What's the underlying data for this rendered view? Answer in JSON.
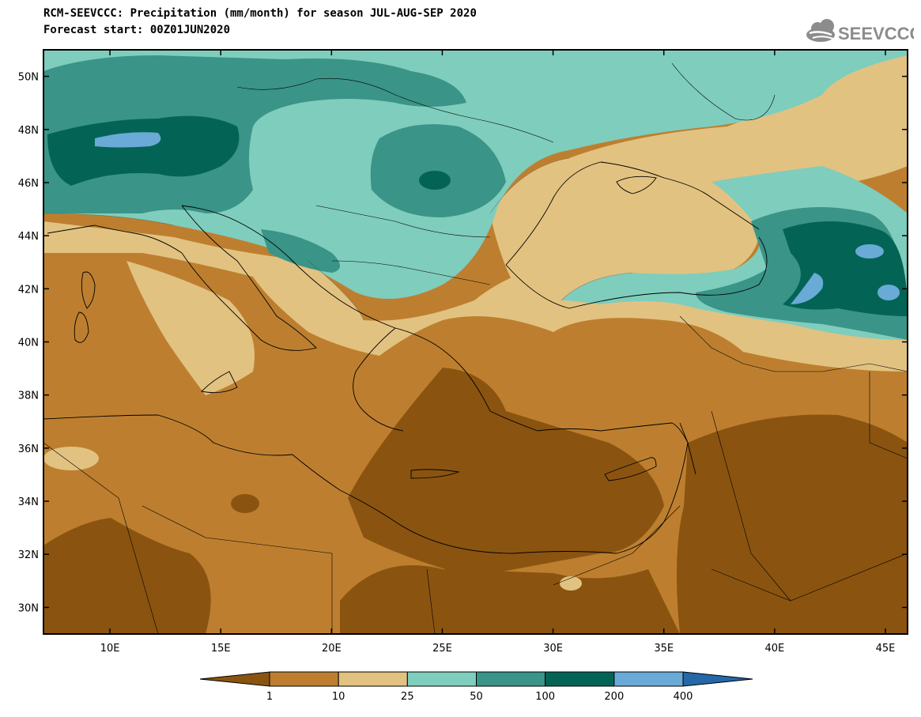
{
  "header": {
    "title": "RCM-SEEVCCC: Precipitation (mm/month) for season JUL-AUG-SEP 2020",
    "subtitle": "Forecast start: 00Z01JUN2020",
    "logo_text": "SEEVCCC"
  },
  "map": {
    "lon_range": [
      7,
      46
    ],
    "lat_range": [
      29,
      51
    ],
    "lat_ticks": [
      {
        "value": 30,
        "label": "30N"
      },
      {
        "value": 32,
        "label": "32N"
      },
      {
        "value": 34,
        "label": "34N"
      },
      {
        "value": 36,
        "label": "36N"
      },
      {
        "value": 38,
        "label": "38N"
      },
      {
        "value": 40,
        "label": "40N"
      },
      {
        "value": 42,
        "label": "42N"
      },
      {
        "value": 44,
        "label": "44N"
      },
      {
        "value": 46,
        "label": "46N"
      },
      {
        "value": 48,
        "label": "48N"
      },
      {
        "value": 50,
        "label": "50N"
      }
    ],
    "lon_ticks": [
      {
        "value": 10,
        "label": "10E"
      },
      {
        "value": 15,
        "label": "15E"
      },
      {
        "value": 20,
        "label": "20E"
      },
      {
        "value": 25,
        "label": "25E"
      },
      {
        "value": 30,
        "label": "30E"
      },
      {
        "value": 35,
        "label": "35E"
      },
      {
        "value": 40,
        "label": "40E"
      },
      {
        "value": 45,
        "label": "45E"
      }
    ]
  },
  "colorbar": {
    "colors": [
      "#8a5410",
      "#bd7f2f",
      "#e2c281",
      "#7fcdbd",
      "#3a9487",
      "#036456",
      "#6aaad6",
      "#2468a8"
    ],
    "labels": [
      "1",
      "10",
      "25",
      "50",
      "100",
      "200",
      "400"
    ]
  }
}
